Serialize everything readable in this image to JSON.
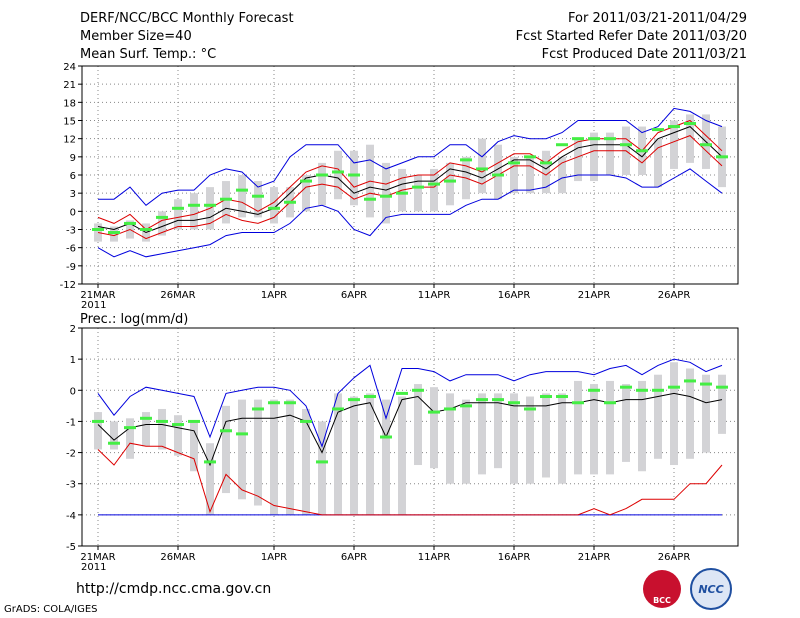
{
  "header": {
    "title": "DERF/NCC/BCC Monthly Forecast",
    "member_size": "Member Size=40",
    "variable": "Mean Surf. Temp.: °C",
    "period": "For 2011/03/21-2011/04/29",
    "fcst_started": "Fcst Started Refer Date 2011/03/20",
    "fcst_produced": "Fcst Produced Date 2011/03/21"
  },
  "footer": {
    "url": "http://cmdp.ncc.cma.gov.cn",
    "grads": "GrADS: COLA/IGES",
    "logo_left": "BCC",
    "logo_right": "NCC"
  },
  "colors": {
    "box": "#d3d3d6",
    "median_bar": "#44ee44",
    "ensemble_mean": "#000000",
    "red_line": "#dd0000",
    "blue_line": "#0000dd",
    "grid": "#888888"
  },
  "chart_data": [
    {
      "type": "boxplot-ensemble",
      "title": "Mean Surf. Temp.: °C",
      "ylim": [
        -12,
        24
      ],
      "yticks": [
        "-12",
        "-9",
        "-6",
        "-3",
        "0",
        "3",
        "6",
        "9",
        "12",
        "15",
        "18",
        "21",
        "24"
      ],
      "xtick_labels": [
        "21MAR",
        "26MAR",
        "1APR",
        "6APR",
        "11APR",
        "16APR",
        "21APR",
        "26APR"
      ],
      "xtick_index": [
        0,
        5,
        11,
        16,
        21,
        26,
        31,
        36
      ],
      "year_label": "2011",
      "days": 40,
      "series": {
        "box_top": [
          -2,
          -2.5,
          -1.5,
          -2,
          0,
          2,
          3,
          4,
          5,
          6,
          5,
          4,
          4,
          6,
          8,
          10,
          10,
          11,
          8,
          7,
          6,
          7,
          8,
          9,
          12,
          11,
          9,
          9,
          10,
          9,
          12,
          13,
          13,
          14,
          14,
          12,
          15,
          16,
          16,
          14
        ],
        "box_bottom": [
          -5,
          -5,
          -4.5,
          -5,
          -4,
          -3,
          -3,
          -3,
          -2,
          -1,
          -1,
          -2,
          -1,
          0,
          1,
          2,
          1,
          -1,
          -2,
          0,
          0,
          0,
          1,
          2,
          3,
          2,
          3,
          3,
          3,
          3,
          5,
          5,
          6,
          6,
          6,
          4,
          7,
          8,
          7,
          4
        ],
        "max_line": [
          2,
          2,
          4,
          1,
          3,
          3.5,
          3.5,
          6,
          7,
          6.5,
          4,
          5,
          9,
          11,
          11,
          11,
          8,
          8.5,
          7,
          8,
          9,
          9,
          11,
          11,
          9,
          11.5,
          12.5,
          12,
          12,
          13,
          15,
          15,
          15,
          15,
          13,
          14,
          17,
          16.5,
          15,
          14
        ],
        "upper_red": [
          -1,
          -2,
          -0.5,
          -3,
          -1.5,
          -1,
          -0.5,
          0.5,
          2,
          1.5,
          0,
          1.5,
          4,
          6.5,
          7.5,
          7,
          4,
          5,
          4.5,
          5.5,
          6,
          6,
          8,
          7.5,
          6.5,
          8,
          9.5,
          9.5,
          8,
          10,
          11.5,
          12,
          12,
          12,
          10,
          13,
          14,
          15,
          12.5,
          10
        ],
        "ens_mean": [
          -2.5,
          -3,
          -2,
          -3.5,
          -2.5,
          -1.5,
          -1.5,
          -1,
          0.5,
          0,
          -0.5,
          0.5,
          3,
          5.5,
          6,
          5.5,
          3,
          4,
          3.5,
          4.5,
          5,
          5,
          7,
          6.5,
          5.5,
          7,
          8.5,
          8.5,
          7,
          9,
          10.5,
          11,
          11,
          11,
          9,
          12,
          13,
          14,
          11.5,
          9
        ],
        "lower_red": [
          -3.5,
          -4,
          -3,
          -4.5,
          -3.5,
          -2.5,
          -2.5,
          -2,
          -0.5,
          -1.5,
          -2,
          -1,
          1.5,
          4,
          4.5,
          4,
          2,
          3,
          2.5,
          3.5,
          4,
          4,
          6,
          5.5,
          4.5,
          6,
          7.5,
          7.5,
          6,
          8,
          9,
          10,
          10,
          10,
          8,
          10.5,
          11.5,
          12.5,
          10,
          7.5
        ],
        "min_line": [
          -6,
          -7.5,
          -6.5,
          -7.5,
          -7,
          -6.5,
          -6,
          -5.5,
          -4,
          -3.5,
          -3.5,
          -3.5,
          -2,
          0.5,
          1,
          0,
          -3,
          -4,
          -1,
          -0.5,
          -0.5,
          -0.5,
          -0.5,
          1,
          2,
          2,
          3.5,
          3.5,
          4,
          5.5,
          6,
          6,
          6,
          5.5,
          4,
          4,
          5.5,
          7,
          5,
          3
        ],
        "median": [
          -3,
          -3.5,
          -2,
          -3,
          -1,
          0.5,
          1,
          1,
          2,
          3.5,
          2.5,
          0.5,
          1.5,
          5,
          6,
          6.5,
          6,
          2,
          2.5,
          3,
          4,
          4.5,
          5,
          8.5,
          7,
          6,
          8,
          9,
          8,
          11,
          12,
          12,
          12,
          11,
          10,
          13.5,
          14,
          14.5,
          11,
          9
        ]
      }
    },
    {
      "type": "boxplot-ensemble",
      "title": "Prec.: log(mm/d)",
      "ylim": [
        -5,
        2
      ],
      "yticks": [
        "-5",
        "-4",
        "-3",
        "-2",
        "-1",
        "0",
        "1",
        "2"
      ],
      "xtick_labels": [
        "21MAR",
        "26MAR",
        "1APR",
        "6APR",
        "11APR",
        "16APR",
        "21APR",
        "26APR"
      ],
      "xtick_index": [
        0,
        5,
        11,
        16,
        21,
        26,
        31,
        36
      ],
      "year_label": "2011",
      "days": 40,
      "series": {
        "box_top": [
          -0.7,
          -1.0,
          -0.9,
          -0.7,
          -0.6,
          -0.8,
          -1.0,
          -1.7,
          -0.5,
          -0.3,
          -0.3,
          -0.3,
          -0.3,
          -0.6,
          -1.0,
          -0.1,
          -0.2,
          -0.1,
          -0.3,
          -0.2,
          0.2,
          0.1,
          -0.1,
          -0.3,
          -0.1,
          -0.1,
          -0.1,
          -0.2,
          -0.1,
          -0.1,
          0.3,
          0.2,
          0.3,
          0.2,
          0.3,
          0.5,
          0.9,
          0.7,
          0.5,
          0.5
        ],
        "box_bottom": [
          -1.9,
          -1.9,
          -2.2,
          -1.8,
          -1.9,
          -2.1,
          -2.6,
          -4.0,
          -3.3,
          -3.5,
          -3.7,
          -4.0,
          -4.0,
          -4.0,
          -4.0,
          -4.0,
          -4.0,
          -4.0,
          -4.0,
          -4.0,
          -2.4,
          -2.5,
          -3.0,
          -3.0,
          -2.7,
          -2.5,
          -3.0,
          -3.0,
          -2.8,
          -3.0,
          -2.7,
          -2.7,
          -2.7,
          -2.3,
          -2.6,
          -2.2,
          -2.4,
          -2.2,
          -2.0,
          -1.4
        ],
        "max_line": [
          -0.1,
          -0.8,
          -0.2,
          0.1,
          0.0,
          -0.1,
          -0.2,
          -1.5,
          -0.1,
          0.0,
          0.1,
          0.1,
          0.0,
          -0.5,
          -1.8,
          -0.1,
          0.4,
          0.8,
          -0.9,
          0.7,
          0.7,
          0.6,
          0.3,
          0.5,
          0.5,
          0.5,
          0.3,
          0.5,
          0.6,
          0.6,
          0.6,
          0.5,
          0.7,
          0.8,
          0.5,
          0.8,
          1.0,
          0.9,
          0.6,
          0.8
        ],
        "ens_mean": [
          -1.1,
          -1.6,
          -1.2,
          -1.1,
          -1.1,
          -1.2,
          -1.3,
          -2.4,
          -1.0,
          -0.9,
          -0.9,
          -0.9,
          -0.8,
          -1.0,
          -2.0,
          -0.7,
          -0.5,
          -0.4,
          -1.5,
          -0.3,
          -0.2,
          -0.7,
          -0.6,
          -0.4,
          -0.4,
          -0.4,
          -0.5,
          -0.5,
          -0.5,
          -0.4,
          -0.4,
          -0.3,
          -0.4,
          -0.3,
          -0.3,
          -0.2,
          -0.1,
          -0.2,
          -0.4,
          -0.3
        ],
        "red_line": [
          -1.9,
          -2.4,
          -1.7,
          -1.8,
          -1.8,
          -2.0,
          -2.2,
          -3.9,
          -2.7,
          -3.2,
          -3.4,
          -3.7,
          -3.8,
          -3.9,
          -4.0,
          -4.0,
          -4.0,
          -4.0,
          -4.0,
          -4.0,
          -4.0,
          -4.0,
          -4.0,
          -4.0,
          -4.0,
          -4.0,
          -4.0,
          -4.0,
          -4.0,
          -4.0,
          -4.0,
          -3.8,
          -4.0,
          -3.8,
          -3.5,
          -3.5,
          -3.5,
          -3.0,
          -3.0,
          -2.4
        ],
        "min_line": [
          -4,
          -4,
          -4,
          -4,
          -4,
          -4,
          -4,
          -4,
          -4,
          -4,
          -4,
          -4,
          -4,
          -4,
          -4,
          -4,
          -4,
          -4,
          -4,
          -4,
          -4,
          -4,
          -4,
          -4,
          -4,
          -4,
          -4,
          -4,
          -4,
          -4,
          -4,
          -4,
          -4,
          -4,
          -4,
          -4,
          -4,
          -4,
          -4,
          -4
        ],
        "median": [
          -1.0,
          -1.7,
          -1.2,
          -0.9,
          -1.0,
          -1.1,
          -1.0,
          -2.3,
          -1.3,
          -1.4,
          -0.6,
          -0.4,
          -0.4,
          -1.0,
          -2.3,
          -0.6,
          -0.3,
          -0.2,
          -1.5,
          -0.1,
          0.0,
          -0.7,
          -0.6,
          -0.5,
          -0.3,
          -0.3,
          -0.4,
          -0.6,
          -0.2,
          -0.2,
          -0.4,
          0.0,
          -0.4,
          0.1,
          0.0,
          0.0,
          0.1,
          0.3,
          0.2,
          0.1
        ]
      }
    }
  ]
}
